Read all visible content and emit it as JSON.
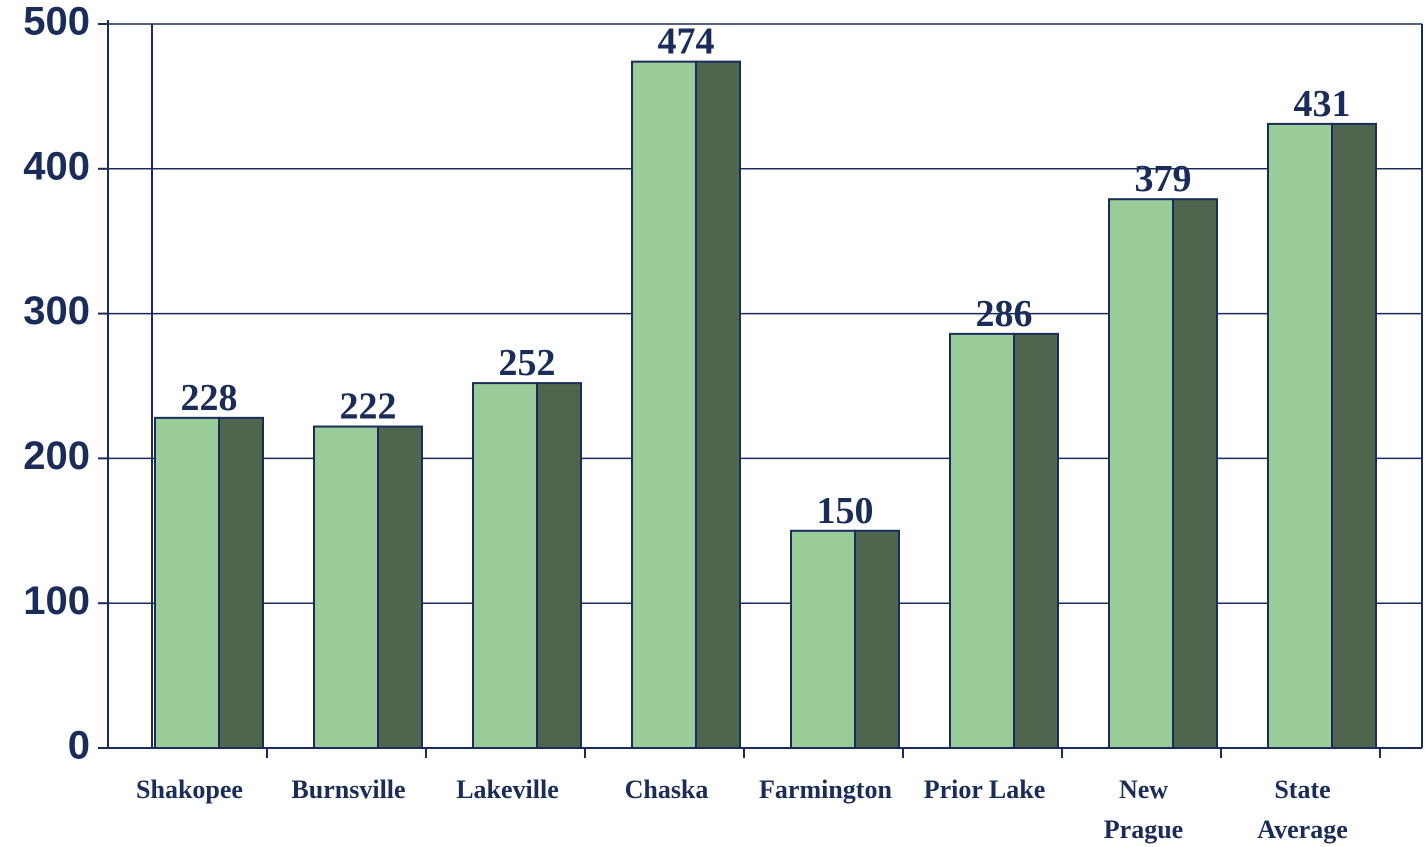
{
  "chart_data": {
    "type": "bar",
    "categories": [
      "Shakopee",
      "Burnsville",
      "Lakeville",
      "Chaska",
      "Farmington",
      "Prior Lake",
      "New\nPrague",
      "State\nAverage"
    ],
    "values": [
      228,
      222,
      252,
      474,
      150,
      286,
      379,
      431
    ],
    "color": "#99cc99",
    "side_color": "#4e664e",
    "ylim": [
      0,
      500
    ],
    "yticks": [
      0,
      100,
      200,
      300,
      400,
      500
    ],
    "grid": true
  }
}
